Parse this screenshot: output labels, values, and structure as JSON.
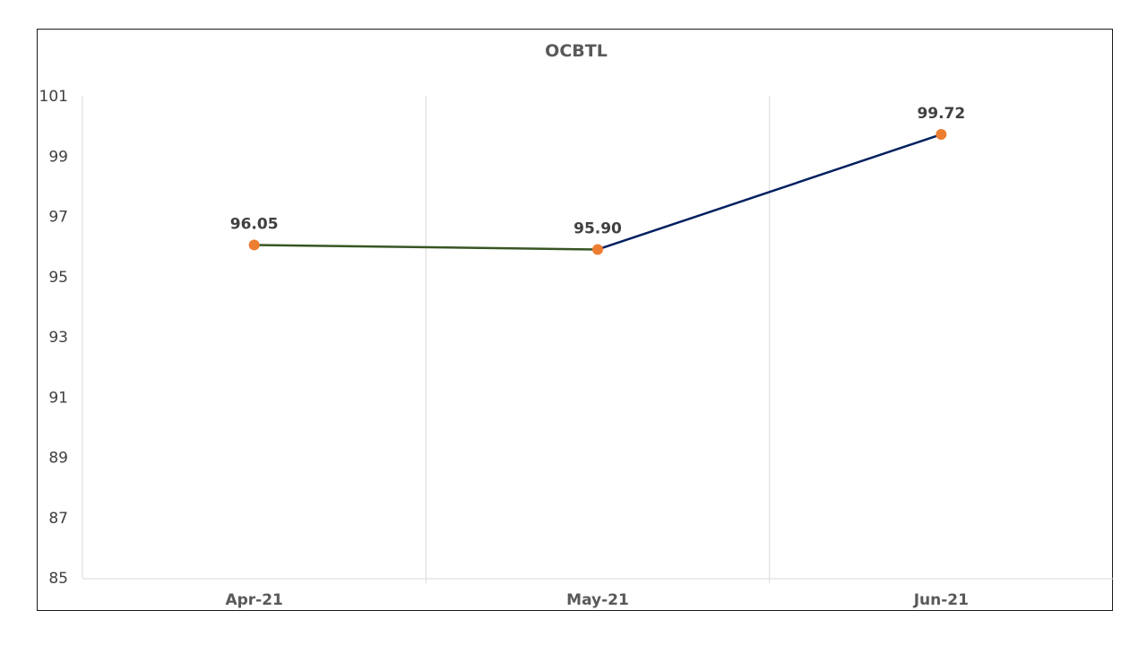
{
  "chart_data": {
    "type": "line",
    "title": "OCBTL",
    "xlabel": "",
    "ylabel": "",
    "categories": [
      "Apr-21",
      "May-21",
      "Jun-21"
    ],
    "series": [
      {
        "values": [
          96.05,
          95.9,
          99.72
        ],
        "data_labels": [
          "96.05",
          "95.90",
          "99.72"
        ]
      }
    ],
    "ylim": [
      85,
      101
    ],
    "yticks": [
      "101",
      "99",
      "97",
      "95",
      "93",
      "91",
      "89",
      "87",
      "85"
    ],
    "grid": "vertical",
    "legend": "none",
    "colors": {
      "segment_1": "#375623",
      "segment_2": "#002060",
      "marker": "#ED7D31"
    }
  }
}
